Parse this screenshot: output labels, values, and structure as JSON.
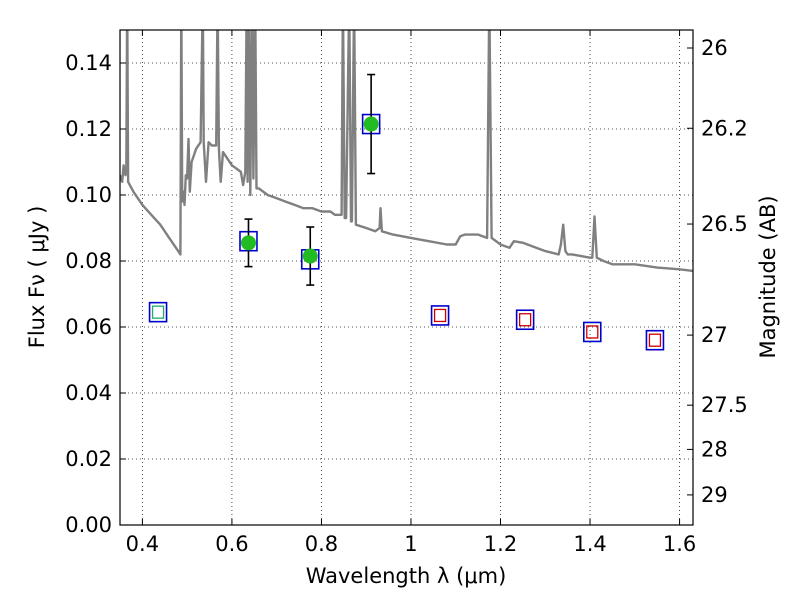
{
  "chart_data": {
    "type": "scatter",
    "xlabel": "Wavelength  λ (μm)",
    "ylabel": "Flux  Fν  ( μJy )",
    "y2label": "Magnitude (AB)",
    "xlim": [
      0.35,
      1.63
    ],
    "ylim": [
      0.0,
      0.15
    ],
    "x_ticks": [
      "0.4",
      "0.6",
      "0.8",
      "1",
      "1.2",
      "1.4",
      "1.6"
    ],
    "y_ticks": [
      "0.00",
      "0.02",
      "0.04",
      "0.06",
      "0.08",
      "0.10",
      "0.12",
      "0.14"
    ],
    "y2_ticks": [
      "26",
      "26.2",
      "26.5",
      "27",
      "27.5",
      "28",
      "29"
    ],
    "grid": true,
    "series": [
      {
        "marker": "filled-circle",
        "color": "#22bb22",
        "points": [
          {
            "x": 0.637,
            "y": 0.0855,
            "err": 0.0072
          },
          {
            "x": 0.775,
            "y": 0.0815,
            "err": 0.0088
          },
          {
            "x": 0.911,
            "y": 0.1215,
            "err": 0.015
          }
        ]
      },
      {
        "marker": "open-square",
        "color": "#0000cc",
        "points": [
          {
            "x": 0.435,
            "y": 0.0645
          },
          {
            "x": 0.637,
            "y": 0.086
          },
          {
            "x": 0.775,
            "y": 0.0805
          },
          {
            "x": 0.911,
            "y": 0.1215
          },
          {
            "x": 1.065,
            "y": 0.0635
          },
          {
            "x": 1.255,
            "y": 0.0622
          },
          {
            "x": 1.405,
            "y": 0.0585
          },
          {
            "x": 1.545,
            "y": 0.056
          }
        ]
      },
      {
        "marker": "inner-square",
        "colors": [
          "#22aa66",
          "#cc0000"
        ],
        "points": [
          {
            "x": 0.435,
            "y": 0.0645,
            "color": "#22aa66"
          },
          {
            "x": 1.065,
            "y": 0.0635,
            "color": "#cc0000"
          },
          {
            "x": 1.255,
            "y": 0.0622,
            "color": "#cc0000"
          },
          {
            "x": 1.405,
            "y": 0.0585,
            "color": "#cc0000"
          },
          {
            "x": 1.545,
            "y": 0.056,
            "color": "#cc0000"
          }
        ]
      },
      {
        "marker": "line",
        "color": "#808080",
        "points": [
          {
            "x": 0.35,
            "y": 0.106
          },
          {
            "x": 0.355,
            "y": 0.104
          },
          {
            "x": 0.358,
            "y": 0.109
          },
          {
            "x": 0.362,
            "y": 0.106
          },
          {
            "x": 0.364,
            "y": 0.107
          },
          {
            "x": 0.366,
            "y": 0.16
          },
          {
            "x": 0.368,
            "y": 0.104
          },
          {
            "x": 0.38,
            "y": 0.101
          },
          {
            "x": 0.4,
            "y": 0.097
          },
          {
            "x": 0.42,
            "y": 0.094
          },
          {
            "x": 0.44,
            "y": 0.091
          },
          {
            "x": 0.46,
            "y": 0.087
          },
          {
            "x": 0.475,
            "y": 0.084
          },
          {
            "x": 0.485,
            "y": 0.082
          },
          {
            "x": 0.487,
            "y": 0.16
          },
          {
            "x": 0.489,
            "y": 0.098
          },
          {
            "x": 0.492,
            "y": 0.101
          },
          {
            "x": 0.494,
            "y": 0.097
          },
          {
            "x": 0.497,
            "y": 0.106
          },
          {
            "x": 0.5,
            "y": 0.105
          },
          {
            "x": 0.503,
            "y": 0.117
          },
          {
            "x": 0.506,
            "y": 0.101
          },
          {
            "x": 0.51,
            "y": 0.11
          },
          {
            "x": 0.515,
            "y": 0.112
          },
          {
            "x": 0.52,
            "y": 0.114
          },
          {
            "x": 0.53,
            "y": 0.116
          },
          {
            "x": 0.535,
            "y": 0.16
          },
          {
            "x": 0.537,
            "y": 0.116
          },
          {
            "x": 0.542,
            "y": 0.104
          },
          {
            "x": 0.548,
            "y": 0.116
          },
          {
            "x": 0.555,
            "y": 0.115
          },
          {
            "x": 0.565,
            "y": 0.115
          },
          {
            "x": 0.568,
            "y": 0.16
          },
          {
            "x": 0.571,
            "y": 0.114
          },
          {
            "x": 0.575,
            "y": 0.104
          },
          {
            "x": 0.58,
            "y": 0.113
          },
          {
            "x": 0.6,
            "y": 0.109
          },
          {
            "x": 0.62,
            "y": 0.107
          },
          {
            "x": 0.625,
            "y": 0.103
          },
          {
            "x": 0.63,
            "y": 0.107
          },
          {
            "x": 0.633,
            "y": 0.16
          },
          {
            "x": 0.635,
            "y": 0.104
          },
          {
            "x": 0.638,
            "y": 0.16
          },
          {
            "x": 0.641,
            "y": 0.1
          },
          {
            "x": 0.645,
            "y": 0.16
          },
          {
            "x": 0.648,
            "y": 0.105
          },
          {
            "x": 0.652,
            "y": 0.16
          },
          {
            "x": 0.655,
            "y": 0.102
          },
          {
            "x": 0.66,
            "y": 0.102
          },
          {
            "x": 0.68,
            "y": 0.1
          },
          {
            "x": 0.7,
            "y": 0.099
          },
          {
            "x": 0.72,
            "y": 0.098
          },
          {
            "x": 0.74,
            "y": 0.097
          },
          {
            "x": 0.76,
            "y": 0.096
          },
          {
            "x": 0.78,
            "y": 0.096
          },
          {
            "x": 0.8,
            "y": 0.095
          },
          {
            "x": 0.82,
            "y": 0.095
          },
          {
            "x": 0.83,
            "y": 0.094
          },
          {
            "x": 0.845,
            "y": 0.094
          },
          {
            "x": 0.848,
            "y": 0.16
          },
          {
            "x": 0.852,
            "y": 0.093
          },
          {
            "x": 0.855,
            "y": 0.093
          },
          {
            "x": 0.862,
            "y": 0.16
          },
          {
            "x": 0.866,
            "y": 0.092
          },
          {
            "x": 0.868,
            "y": 0.092
          },
          {
            "x": 0.873,
            "y": 0.16
          },
          {
            "x": 0.877,
            "y": 0.091
          },
          {
            "x": 0.9,
            "y": 0.09
          },
          {
            "x": 0.92,
            "y": 0.089
          },
          {
            "x": 0.93,
            "y": 0.09
          },
          {
            "x": 0.932,
            "y": 0.096
          },
          {
            "x": 0.935,
            "y": 0.089
          },
          {
            "x": 0.96,
            "y": 0.088
          },
          {
            "x": 1.0,
            "y": 0.087
          },
          {
            "x": 1.04,
            "y": 0.086
          },
          {
            "x": 1.08,
            "y": 0.085
          },
          {
            "x": 1.1,
            "y": 0.085
          },
          {
            "x": 1.11,
            "y": 0.0875
          },
          {
            "x": 1.12,
            "y": 0.088
          },
          {
            "x": 1.15,
            "y": 0.088
          },
          {
            "x": 1.17,
            "y": 0.087
          },
          {
            "x": 1.175,
            "y": 0.16
          },
          {
            "x": 1.18,
            "y": 0.087
          },
          {
            "x": 1.2,
            "y": 0.085
          },
          {
            "x": 1.22,
            "y": 0.084
          },
          {
            "x": 1.23,
            "y": 0.086
          },
          {
            "x": 1.25,
            "y": 0.0855
          },
          {
            "x": 1.27,
            "y": 0.0845
          },
          {
            "x": 1.3,
            "y": 0.083
          },
          {
            "x": 1.33,
            "y": 0.082
          },
          {
            "x": 1.335,
            "y": 0.085
          },
          {
            "x": 1.34,
            "y": 0.091
          },
          {
            "x": 1.345,
            "y": 0.083
          },
          {
            "x": 1.35,
            "y": 0.082
          },
          {
            "x": 1.36,
            "y": 0.082
          },
          {
            "x": 1.4,
            "y": 0.081
          },
          {
            "x": 1.405,
            "y": 0.081
          },
          {
            "x": 1.41,
            "y": 0.0935
          },
          {
            "x": 1.415,
            "y": 0.081
          },
          {
            "x": 1.43,
            "y": 0.08
          },
          {
            "x": 1.45,
            "y": 0.079
          },
          {
            "x": 1.5,
            "y": 0.079
          },
          {
            "x": 1.55,
            "y": 0.078
          },
          {
            "x": 1.6,
            "y": 0.0775
          },
          {
            "x": 1.63,
            "y": 0.077
          }
        ]
      }
    ]
  }
}
